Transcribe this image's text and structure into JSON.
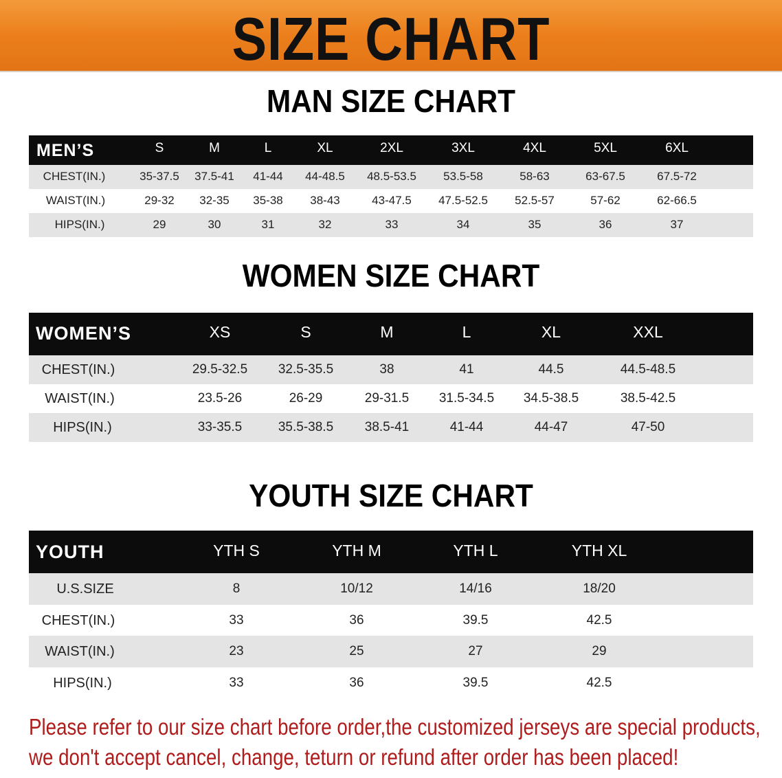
{
  "banner_title": "SIZE CHART",
  "men": {
    "title": "MAN SIZE CHART",
    "header_label": "MEN’S",
    "sizes": [
      "S",
      "M",
      "L",
      "XL",
      "2XL",
      "3XL",
      "4XL",
      "5XL",
      "6XL"
    ],
    "rows": [
      {
        "label": "CHEST(IN.)",
        "values": [
          "35-37.5",
          "37.5-41",
          "41-44",
          "44-48.5",
          "48.5-53.5",
          "53.5-58",
          "58-63",
          "63-67.5",
          "67.5-72"
        ]
      },
      {
        "label": "WAIST(IN.)",
        "values": [
          "29-32",
          "32-35",
          "35-38",
          "38-43",
          "43-47.5",
          "47.5-52.5",
          "52.5-57",
          "57-62",
          "62-66.5"
        ]
      },
      {
        "label": "HIPS(IN.)",
        "values": [
          "29",
          "30",
          "31",
          "32",
          "33",
          "34",
          "35",
          "36",
          "37"
        ]
      }
    ]
  },
  "women": {
    "title": "WOMEN SIZE CHART",
    "header_label": "WOMEN’S",
    "sizes": [
      "XS",
      "S",
      "M",
      "L",
      "XL",
      "XXL"
    ],
    "rows": [
      {
        "label": "CHEST(IN.)",
        "values": [
          "29.5-32.5",
          "32.5-35.5",
          "38",
          "41",
          "44.5",
          "44.5-48.5"
        ]
      },
      {
        "label": "WAIST(IN.)",
        "values": [
          "23.5-26",
          "26-29",
          "29-31.5",
          "31.5-34.5",
          "34.5-38.5",
          "38.5-42.5"
        ]
      },
      {
        "label": "HIPS(IN.)",
        "values": [
          "33-35.5",
          "35.5-38.5",
          "38.5-41",
          "41-44",
          "44-47",
          "47-50"
        ]
      }
    ]
  },
  "youth": {
    "title": "YOUTH SIZE CHART",
    "header_label": "YOUTH",
    "sizes": [
      "YTH S",
      "YTH M",
      "YTH L",
      "YTH XL"
    ],
    "rows": [
      {
        "label": "U.S.SIZE",
        "values": [
          "8",
          "10/12",
          "14/16",
          "18/20"
        ]
      },
      {
        "label": "CHEST(IN.)",
        "values": [
          "33",
          "36",
          "39.5",
          "42.5"
        ]
      },
      {
        "label": "WAIST(IN.)",
        "values": [
          "23",
          "25",
          "27",
          "29"
        ]
      },
      {
        "label": "HIPS(IN.)",
        "values": [
          "33",
          "36",
          "39.5",
          "42.5"
        ]
      }
    ]
  },
  "notice": {
    "line1": "Please refer to our size chart before order,the customized jerseys are special products,",
    "line2": "we don't accept cancel, change, teturn or refund after order has been placed!"
  },
  "colors": {
    "banner": "#ec7f1c",
    "header_bg": "#0c0c0c",
    "stripe": "#e4e4e4",
    "notice": "#b01c1c"
  }
}
